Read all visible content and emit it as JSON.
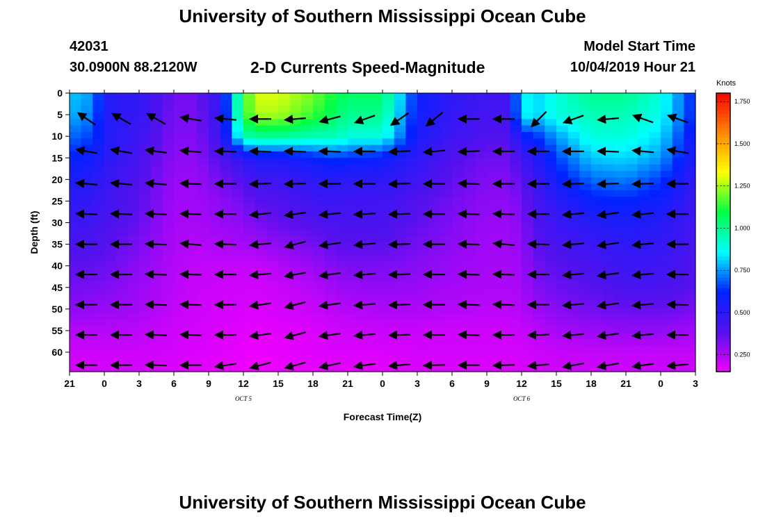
{
  "header": {
    "title_top": "University of Southern Mississippi Ocean Cube",
    "title_bottom": "University of Southern Mississippi Ocean Cube",
    "station_id": "42031",
    "location": "30.0900N 88.2120W",
    "subtitle": "2-D Currents Speed-Magnitude",
    "model_start_label": "Model Start Time",
    "model_start_value": "10/04/2019 Hour 21"
  },
  "colorbar": {
    "title": "Knots",
    "ticks": [
      0.25,
      0.5,
      0.75,
      1.0,
      1.25,
      1.5,
      1.75
    ],
    "tick_labels": [
      "0.250",
      "0.500",
      "0.750",
      "1.000",
      "1.250",
      "1.500",
      "1.750"
    ],
    "range": [
      0.15,
      1.8
    ],
    "colors": [
      "#ee00ff",
      "#5511ee",
      "#0022ff",
      "#00ffff",
      "#00ff44",
      "#ffff00",
      "#ff8800",
      "#ff0000"
    ]
  },
  "chart_data": {
    "type": "heatmap",
    "xlabel": "Forecast Time(Z)",
    "ylabel": "Depth (ft)",
    "xlim": [
      0,
      54
    ],
    "ylim": [
      0,
      64.5
    ],
    "x_ticks": [
      0,
      3,
      6,
      9,
      12,
      15,
      18,
      21,
      24,
      27,
      30,
      33,
      36,
      39,
      42,
      45,
      48,
      51,
      54
    ],
    "x_tick_labels": [
      "21",
      "0",
      "3",
      "6",
      "9",
      "12",
      "15",
      "18",
      "21",
      "0",
      "3",
      "6",
      "9",
      "12",
      "15",
      "18",
      "21",
      "0",
      "3"
    ],
    "y_ticks": [
      0,
      5,
      10,
      15,
      20,
      25,
      30,
      35,
      40,
      45,
      50,
      55,
      60
    ],
    "date_labels": [
      {
        "x": 15,
        "text": "OCT 5"
      },
      {
        "x": 39,
        "text": "OCT 6"
      }
    ],
    "speed_knots": {
      "times": [
        0,
        2,
        3,
        4,
        6,
        9,
        11,
        13,
        15,
        16,
        18,
        21,
        23,
        24,
        27,
        30,
        33,
        36,
        38,
        39,
        40,
        42,
        45,
        48,
        51,
        54
      ],
      "depths": [
        0,
        5,
        10,
        15,
        20,
        25,
        30,
        35,
        40,
        45,
        50,
        55,
        60,
        64.5
      ],
      "values": [
        [
          0.8,
          0.75,
          0.55,
          0.5,
          0.5,
          0.35,
          0.35,
          0.5,
          1.1,
          1.3,
          1.3,
          1.2,
          1.1,
          1.05,
          1.05,
          0.6,
          0.5,
          0.45,
          0.45,
          0.9,
          0.8,
          0.9,
          1.0,
          1.0,
          0.9,
          0.6
        ],
        [
          0.78,
          0.72,
          0.55,
          0.5,
          0.48,
          0.33,
          0.33,
          0.48,
          1.1,
          1.25,
          1.25,
          1.15,
          1.05,
          1.0,
          1.0,
          0.58,
          0.48,
          0.43,
          0.43,
          0.9,
          0.8,
          0.9,
          0.95,
          0.95,
          0.88,
          0.6
        ],
        [
          0.7,
          0.65,
          0.55,
          0.5,
          0.46,
          0.32,
          0.32,
          0.46,
          0.95,
          1.0,
          1.0,
          0.95,
          0.95,
          0.9,
          0.9,
          0.55,
          0.45,
          0.4,
          0.4,
          0.6,
          0.62,
          0.75,
          0.9,
          0.9,
          0.82,
          0.55
        ],
        [
          0.62,
          0.58,
          0.52,
          0.48,
          0.42,
          0.3,
          0.3,
          0.4,
          0.5,
          0.55,
          0.55,
          0.6,
          0.65,
          0.62,
          0.6,
          0.5,
          0.4,
          0.35,
          0.35,
          0.45,
          0.5,
          0.65,
          0.8,
          0.82,
          0.75,
          0.52
        ],
        [
          0.55,
          0.52,
          0.48,
          0.45,
          0.4,
          0.28,
          0.28,
          0.34,
          0.4,
          0.45,
          0.45,
          0.5,
          0.52,
          0.5,
          0.5,
          0.45,
          0.37,
          0.32,
          0.32,
          0.38,
          0.45,
          0.58,
          0.7,
          0.72,
          0.65,
          0.48
        ],
        [
          0.5,
          0.48,
          0.45,
          0.42,
          0.38,
          0.27,
          0.27,
          0.3,
          0.34,
          0.38,
          0.4,
          0.45,
          0.46,
          0.45,
          0.45,
          0.4,
          0.34,
          0.3,
          0.3,
          0.34,
          0.42,
          0.5,
          0.6,
          0.62,
          0.58,
          0.45
        ],
        [
          0.46,
          0.44,
          0.42,
          0.4,
          0.36,
          0.26,
          0.26,
          0.28,
          0.3,
          0.33,
          0.36,
          0.4,
          0.42,
          0.42,
          0.42,
          0.37,
          0.32,
          0.28,
          0.28,
          0.31,
          0.4,
          0.46,
          0.52,
          0.55,
          0.52,
          0.44
        ],
        [
          0.42,
          0.41,
          0.39,
          0.37,
          0.33,
          0.25,
          0.24,
          0.25,
          0.26,
          0.27,
          0.3,
          0.34,
          0.38,
          0.38,
          0.38,
          0.34,
          0.3,
          0.27,
          0.27,
          0.29,
          0.37,
          0.42,
          0.46,
          0.5,
          0.48,
          0.42
        ],
        [
          0.38,
          0.37,
          0.36,
          0.34,
          0.3,
          0.24,
          0.22,
          0.22,
          0.22,
          0.21,
          0.24,
          0.28,
          0.32,
          0.33,
          0.33,
          0.31,
          0.28,
          0.26,
          0.26,
          0.27,
          0.34,
          0.38,
          0.42,
          0.46,
          0.45,
          0.4
        ],
        [
          0.34,
          0.33,
          0.32,
          0.31,
          0.28,
          0.23,
          0.21,
          0.2,
          0.2,
          0.19,
          0.21,
          0.24,
          0.27,
          0.28,
          0.29,
          0.28,
          0.26,
          0.25,
          0.25,
          0.26,
          0.31,
          0.35,
          0.38,
          0.42,
          0.42,
          0.38
        ],
        [
          0.3,
          0.29,
          0.28,
          0.28,
          0.26,
          0.22,
          0.2,
          0.19,
          0.19,
          0.18,
          0.19,
          0.21,
          0.23,
          0.24,
          0.25,
          0.25,
          0.24,
          0.23,
          0.23,
          0.24,
          0.27,
          0.31,
          0.34,
          0.36,
          0.36,
          0.33
        ],
        [
          0.24,
          0.24,
          0.24,
          0.24,
          0.23,
          0.2,
          0.19,
          0.18,
          0.17,
          0.16,
          0.17,
          0.18,
          0.2,
          0.2,
          0.21,
          0.21,
          0.2,
          0.2,
          0.2,
          0.21,
          0.23,
          0.26,
          0.28,
          0.29,
          0.29,
          0.27
        ],
        [
          0.2,
          0.2,
          0.2,
          0.2,
          0.2,
          0.19,
          0.18,
          0.17,
          0.16,
          0.15,
          0.16,
          0.17,
          0.18,
          0.18,
          0.18,
          0.19,
          0.19,
          0.19,
          0.19,
          0.19,
          0.2,
          0.21,
          0.22,
          0.22,
          0.22,
          0.22
        ],
        [
          0.19,
          0.19,
          0.19,
          0.19,
          0.19,
          0.18,
          0.17,
          0.16,
          0.15,
          0.14,
          0.15,
          0.16,
          0.17,
          0.17,
          0.17,
          0.18,
          0.18,
          0.18,
          0.18,
          0.18,
          0.19,
          0.2,
          0.2,
          0.2,
          0.2,
          0.2
        ]
      ]
    },
    "vectors": {
      "times": [
        1.5,
        4.5,
        7.5,
        10.5,
        13.5,
        16.5,
        19.5,
        22.5,
        25.5,
        28.5,
        31.5,
        34.5,
        37.5,
        40.5,
        43.5,
        46.5,
        49.5,
        52.5
      ],
      "depths": [
        6,
        13.5,
        21,
        28,
        35,
        42,
        49,
        56,
        63
      ],
      "direction_deg": [
        [
          145,
          150,
          150,
          170,
          175,
          180,
          185,
          195,
          200,
          215,
          220,
          180,
          180,
          225,
          200,
          185,
          160,
          160
        ],
        [
          170,
          170,
          172,
          175,
          178,
          178,
          178,
          178,
          180,
          182,
          185,
          182,
          180,
          180,
          180,
          178,
          175,
          170
        ],
        [
          175,
          175,
          175,
          178,
          180,
          182,
          182,
          180,
          180,
          182,
          180,
          178,
          180,
          180,
          182,
          182,
          182,
          180
        ],
        [
          178,
          178,
          178,
          178,
          180,
          185,
          188,
          185,
          183,
          182,
          180,
          178,
          178,
          180,
          185,
          188,
          185,
          180
        ],
        [
          180,
          180,
          178,
          175,
          178,
          185,
          195,
          188,
          185,
          182,
          180,
          178,
          175,
          178,
          185,
          188,
          185,
          180
        ],
        [
          180,
          180,
          178,
          178,
          180,
          185,
          190,
          188,
          185,
          182,
          180,
          178,
          178,
          180,
          185,
          188,
          185,
          180
        ],
        [
          180,
          180,
          178,
          178,
          180,
          188,
          195,
          188,
          185,
          182,
          180,
          178,
          178,
          180,
          185,
          188,
          185,
          178
        ],
        [
          180,
          180,
          178,
          178,
          180,
          188,
          195,
          188,
          185,
          182,
          180,
          178,
          180,
          182,
          185,
          188,
          185,
          180
        ],
        [
          180,
          180,
          178,
          180,
          188,
          195,
          195,
          192,
          188,
          185,
          182,
          180,
          182,
          185,
          190,
          190,
          188,
          185
        ]
      ]
    }
  }
}
